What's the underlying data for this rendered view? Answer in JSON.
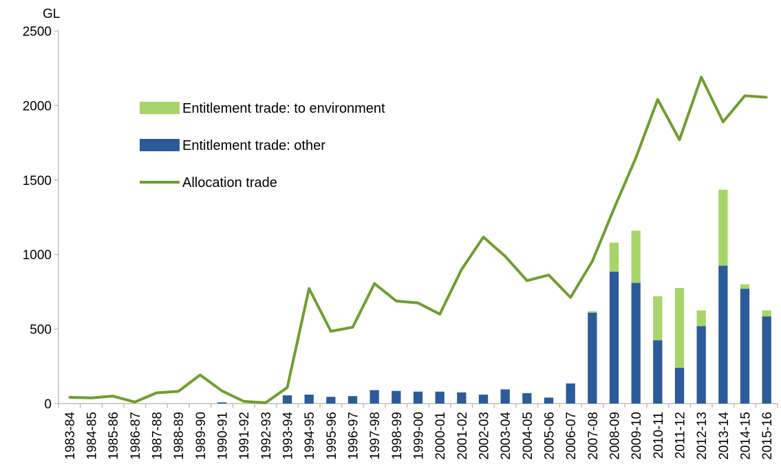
{
  "chart_data": {
    "type": "bar",
    "ylabel": "GL",
    "ylim": [
      0,
      2500
    ],
    "yticks": [
      0,
      500,
      1000,
      1500,
      2000,
      2500
    ],
    "grid": false,
    "legend_position": "top-left",
    "categories": [
      "1983-84",
      "1984-85",
      "1985-86",
      "1986-87",
      "1987-88",
      "1988-89",
      "1989-90",
      "1990-91",
      "1991-92",
      "1992-93",
      "1993-94",
      "1994-95",
      "1995-96",
      "1996-97",
      "1997-98",
      "1998-99",
      "1999-00",
      "2000-01",
      "2001-02",
      "2002-03",
      "2003-04",
      "2004-05",
      "2005-06",
      "2006-07",
      "2007-08",
      "2008-09",
      "2009-10",
      "2010-11",
      "2011-12",
      "2012-13",
      "2013-14",
      "2014-15",
      "2015-16"
    ],
    "series": [
      {
        "name": "Entitlement trade: to environment",
        "kind": "bar",
        "stack_order": 2,
        "color": "#a8d56a",
        "values": [
          0,
          0,
          0,
          0,
          0,
          0,
          0,
          0,
          0,
          0,
          0,
          0,
          0,
          0,
          0,
          0,
          0,
          0,
          0,
          0,
          0,
          0,
          0,
          0,
          10,
          195,
          350,
          295,
          535,
          105,
          510,
          30,
          40
        ]
      },
      {
        "name": "Entitlement trade: other",
        "kind": "bar",
        "stack_order": 1,
        "color": "#2b5b9b",
        "values": [
          0,
          0,
          0,
          0,
          0,
          0,
          0,
          8,
          0,
          0,
          55,
          60,
          45,
          50,
          90,
          85,
          80,
          80,
          75,
          60,
          95,
          70,
          40,
          135,
          610,
          885,
          810,
          425,
          240,
          520,
          925,
          770,
          585
        ]
      },
      {
        "name": "Allocation trade",
        "kind": "line",
        "color": "#6f9e2f",
        "values": [
          42,
          38,
          50,
          10,
          72,
          82,
          192,
          85,
          15,
          5,
          108,
          772,
          485,
          512,
          805,
          688,
          675,
          600,
          900,
          1117,
          988,
          825,
          862,
          712,
          955,
          1310,
          1650,
          2040,
          1770,
          2190,
          1890,
          2065,
          2055
        ]
      }
    ]
  }
}
